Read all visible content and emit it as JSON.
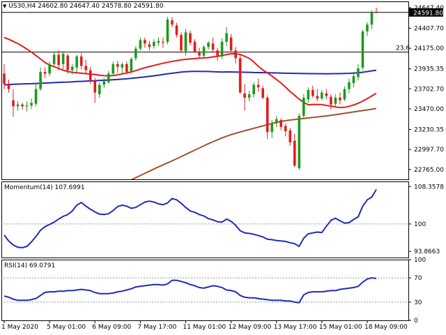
{
  "header": {
    "arrow_glyph": "▼",
    "title": "US30,H4  24602.80 24647.40 24578.80 24591.80"
  },
  "colors": {
    "background": "#ffffff",
    "up_candle": "#1a9b1a",
    "down_candle": "#e31b1b",
    "sma_fast": "#e31b1b",
    "sma_mid": "#1f2ab8",
    "sma_slow": "#a0522d",
    "momentum_line": "#1f2ab8",
    "rsi_line": "#1f2ab8",
    "level_line": "#000000",
    "dotted_level": "#999999"
  },
  "chart_data": [
    {
      "type": "candlestick",
      "title": "US30,H4",
      "y_range": [
        22650,
        24720
      ],
      "y_ticks": [
        "24647.40",
        "24407.70",
        "24175.00",
        "23935.35",
        "23702.70",
        "23470.00",
        "23230.35",
        "22997.70",
        "22765.00"
      ],
      "y_tick_values": [
        24647.4,
        24407.7,
        24175.0,
        23935.35,
        23702.7,
        23470.0,
        23230.35,
        22997.7,
        22765.0
      ],
      "last_price_label": "24591.80",
      "last_price": 24591.8,
      "level_label": "23.6",
      "level_value": 24130,
      "candles": [
        [
          23880,
          23990,
          23700,
          23760
        ],
        [
          23760,
          23810,
          23660,
          23700
        ],
        [
          23570,
          23700,
          23380,
          23500
        ],
        [
          23500,
          23560,
          23450,
          23520
        ],
        [
          23520,
          23540,
          23460,
          23500
        ],
        [
          23500,
          23560,
          23440,
          23510
        ],
        [
          23510,
          23590,
          23470,
          23540
        ],
        [
          23530,
          23760,
          23500,
          23700
        ],
        [
          23700,
          23950,
          23680,
          23900
        ],
        [
          23900,
          23950,
          23830,
          23880
        ],
        [
          23880,
          24020,
          23850,
          23990
        ],
        [
          23990,
          24130,
          23960,
          24100
        ],
        [
          24100,
          24150,
          23920,
          23980
        ],
        [
          23990,
          24140,
          23930,
          24110
        ],
        [
          24090,
          24110,
          23880,
          23920
        ],
        [
          23920,
          23990,
          23870,
          23960
        ],
        [
          23950,
          24100,
          23900,
          24080
        ],
        [
          24080,
          24120,
          23930,
          23970
        ],
        [
          23970,
          24040,
          23870,
          23920
        ],
        [
          23920,
          23960,
          23760,
          23790
        ],
        [
          23800,
          23830,
          23540,
          23660
        ],
        [
          23640,
          23780,
          23600,
          23750
        ],
        [
          23750,
          23830,
          23710,
          23790
        ],
        [
          23780,
          23910,
          23760,
          23880
        ],
        [
          23880,
          24020,
          23850,
          23990
        ],
        [
          23990,
          24030,
          23890,
          23960
        ],
        [
          23950,
          24010,
          23870,
          23990
        ],
        [
          23990,
          24020,
          23870,
          23900
        ],
        [
          23910,
          24070,
          23880,
          24050
        ],
        [
          24060,
          24200,
          24030,
          24170
        ],
        [
          24170,
          24300,
          24150,
          24270
        ],
        [
          24270,
          24300,
          24180,
          24230
        ],
        [
          24220,
          24260,
          24150,
          24190
        ],
        [
          24200,
          24280,
          24170,
          24250
        ],
        [
          24240,
          24300,
          24200,
          24260
        ],
        [
          24250,
          24300,
          24180,
          24240
        ],
        [
          24250,
          24540,
          24220,
          24510
        ],
        [
          24500,
          24540,
          24420,
          24450
        ],
        [
          24440,
          24470,
          24300,
          24330
        ],
        [
          24330,
          24360,
          24120,
          24150
        ],
        [
          24140,
          24400,
          24090,
          24360
        ],
        [
          24350,
          24380,
          24210,
          24240
        ],
        [
          24250,
          24280,
          24120,
          24130
        ],
        [
          24130,
          24180,
          24050,
          24090
        ],
        [
          24090,
          24210,
          24070,
          24190
        ],
        [
          24190,
          24260,
          24160,
          24240
        ],
        [
          24230,
          24300,
          24130,
          24160
        ],
        [
          24150,
          24180,
          24030,
          24090
        ],
        [
          24080,
          24290,
          24050,
          24250
        ],
        [
          24250,
          24420,
          24200,
          24350
        ],
        [
          24300,
          24340,
          24130,
          24150
        ],
        [
          24150,
          24190,
          24000,
          24060
        ],
        [
          24060,
          24100,
          23650,
          23660
        ],
        [
          23650,
          23760,
          23450,
          23600
        ],
        [
          23600,
          23680,
          23560,
          23640
        ],
        [
          23640,
          23780,
          23600,
          23750
        ],
        [
          23750,
          23820,
          23670,
          23720
        ],
        [
          23710,
          23740,
          23580,
          23600
        ],
        [
          23600,
          23630,
          23120,
          23200
        ],
        [
          23200,
          23340,
          23130,
          23300
        ],
        [
          23300,
          23390,
          23260,
          23350
        ],
        [
          23340,
          23360,
          23220,
          23260
        ],
        [
          23270,
          23300,
          23150,
          23210
        ],
        [
          23220,
          23250,
          23040,
          23080
        ],
        [
          23100,
          23180,
          22790,
          22810
        ],
        [
          22780,
          23420,
          22760,
          23390
        ],
        [
          23390,
          23640,
          23360,
          23600
        ],
        [
          23580,
          23720,
          23540,
          23690
        ],
        [
          23690,
          23740,
          23600,
          23620
        ],
        [
          23620,
          23700,
          23560,
          23590
        ],
        [
          23590,
          23690,
          23570,
          23660
        ],
        [
          23650,
          23700,
          23580,
          23620
        ],
        [
          23610,
          23640,
          23460,
          23520
        ],
        [
          23530,
          23640,
          23490,
          23600
        ],
        [
          23600,
          23660,
          23520,
          23570
        ],
        [
          23580,
          23730,
          23560,
          23700
        ],
        [
          23700,
          23820,
          23650,
          23780
        ],
        [
          23770,
          23880,
          23720,
          23850
        ],
        [
          23840,
          23990,
          23800,
          23940
        ],
        [
          23950,
          24390,
          23920,
          24370
        ],
        [
          24370,
          24480,
          24320,
          24450
        ],
        [
          24450,
          24620,
          24400,
          24590
        ],
        [
          24600,
          24647,
          24580,
          24592
        ]
      ],
      "sma_fast": [
        24300,
        24280,
        24255,
        24230,
        24200,
        24165,
        24130,
        24090,
        24050,
        24010,
        23980,
        23960,
        23940,
        23920,
        23905,
        23895,
        23890,
        23885,
        23880,
        23875,
        23870,
        23862,
        23856,
        23855,
        23858,
        23866,
        23876,
        23888,
        23900,
        23915,
        23932,
        23948,
        23962,
        23975,
        23988,
        24000,
        24012,
        24022,
        24032,
        24040,
        24046,
        24050,
        24055,
        24060,
        24062,
        24066,
        24075,
        24082,
        24090,
        24102,
        24110,
        24111,
        24103,
        24082,
        24058,
        24016,
        23964,
        23922,
        23888,
        23852,
        23812,
        23770,
        23722,
        23672,
        23628,
        23582,
        23546,
        23518,
        23522,
        23520,
        23520,
        23510,
        23502,
        23493,
        23485,
        23488,
        23500,
        23515,
        23535,
        23560,
        23590,
        23620,
        23650
      ],
      "sma_mid": [
        23750,
        23752,
        23756,
        23758,
        23760,
        23762,
        23763,
        23765,
        23767,
        23770,
        23773,
        23775,
        23778,
        23780,
        23782,
        23785,
        23788,
        23790,
        23792,
        23795,
        23797,
        23800,
        23803,
        23806,
        23809,
        23812,
        23816,
        23820,
        23825,
        23830,
        23836,
        23842,
        23848,
        23855,
        23862,
        23870,
        23877,
        23884,
        23891,
        23898,
        23902,
        23905,
        23906,
        23907,
        23905,
        23905,
        23902,
        23900,
        23898,
        23900,
        23899,
        23898,
        23897,
        23896,
        23895,
        23893,
        23892,
        23891,
        23890,
        23889,
        23888,
        23886,
        23885,
        23884,
        23883,
        23882,
        23881,
        23880,
        23880,
        23879,
        23879,
        23878,
        23879,
        23880,
        23880,
        23882,
        23883,
        23886,
        23890,
        23896,
        23904,
        23912,
        23920
      ],
      "sma_slow": [
        22220,
        22230,
        22240,
        22250,
        22260,
        22268,
        22276,
        22285,
        22295,
        22305,
        22316,
        22328,
        22340,
        22352,
        22365,
        22380,
        22395,
        22410,
        22428,
        22446,
        22466,
        22486,
        22508,
        22530,
        22552,
        22575,
        22598,
        22620,
        22645,
        22670,
        22695,
        22720,
        22745,
        22770,
        22795,
        22818,
        22842,
        22865,
        22890,
        22915,
        22940,
        22965,
        22990,
        23015,
        23040,
        23065,
        23088,
        23110,
        23132,
        23152,
        23170,
        23185,
        23200,
        23215,
        23230,
        23244,
        23258,
        23272,
        23285,
        23300,
        23312,
        23324,
        23333,
        23340,
        23346,
        23352,
        23358,
        23364,
        23370,
        23376,
        23382,
        23388,
        23395,
        23402,
        23410,
        23418,
        23426,
        23434,
        23442,
        23450,
        23458,
        23466,
        23475
      ]
    },
    {
      "type": "line",
      "title": "Momentum(14) 107.6991",
      "y_range": [
        92.5,
        109.5
      ],
      "y_ticks": [
        "108.3578",
        "100",
        "93.8663"
      ],
      "y_tick_values": [
        108.3578,
        100,
        93.8663
      ],
      "dotted_levels": [
        100
      ],
      "values": [
        97.5,
        96.2,
        95.3,
        94.8,
        94.7,
        95.0,
        96.0,
        97.2,
        98.6,
        99.4,
        99.9,
        100.4,
        101.1,
        101.7,
        102.1,
        102.9,
        104.2,
        104.8,
        104.0,
        103.3,
        102.7,
        102.2,
        102.1,
        102.3,
        103.0,
        103.9,
        104.2,
        104.0,
        103.5,
        103.7,
        104.3,
        104.9,
        105.1,
        104.9,
        104.5,
        104.3,
        104.7,
        105.7,
        105.4,
        104.6,
        103.7,
        102.9,
        102.6,
        102.1,
        101.8,
        101.2,
        100.9,
        100.5,
        100.4,
        101.1,
        100.6,
        99.7,
        98.5,
        98.0,
        97.9,
        97.7,
        97.4,
        97.1,
        96.6,
        96.5,
        96.3,
        96.2,
        96.1,
        95.8,
        95.6,
        95.0,
        96.8,
        97.8,
        98.0,
        98.2,
        98.1,
        99.5,
        100.8,
        101.3,
        100.7,
        100.2,
        100.3,
        101.0,
        101.6,
        104.0,
        105.4,
        106.0,
        107.7
      ]
    },
    {
      "type": "line",
      "title": "RSI(14) 69.0791",
      "y_range": [
        0,
        100
      ],
      "y_ticks": [
        "100",
        "70",
        "30",
        "0"
      ],
      "y_tick_values": [
        100,
        70,
        30,
        0
      ],
      "dotted_levels": [
        70,
        30
      ],
      "values": [
        40,
        38,
        35,
        33,
        33,
        33,
        34,
        36,
        41,
        46,
        47,
        47,
        48,
        48,
        49,
        49,
        50,
        51,
        50,
        49,
        46,
        44,
        44,
        44,
        45,
        47,
        48,
        50,
        52,
        55,
        56,
        57,
        58,
        59,
        59,
        58,
        60,
        66,
        66,
        64,
        62,
        59,
        57,
        54,
        53,
        55,
        57,
        56,
        54,
        50,
        49,
        47,
        41,
        38,
        37,
        37,
        36,
        35,
        34,
        33,
        33,
        33,
        32,
        32,
        30,
        29,
        42,
        46,
        47,
        47,
        47,
        48,
        49,
        49,
        51,
        52,
        53,
        54,
        56,
        63,
        68,
        70,
        69
      ]
    },
    {
      "type": "axis",
      "x_labels": [
        "1 May 2020",
        "5 May 01:00",
        "6 May 09:00",
        "7 May 17:00",
        "11 May 01:00",
        "12 May 09:00",
        "13 May 17:00",
        "15 May 01:00",
        "18 May 09:00"
      ],
      "x_label_index": [
        0,
        10,
        20,
        30,
        40,
        50,
        60,
        70,
        80
      ]
    }
  ]
}
